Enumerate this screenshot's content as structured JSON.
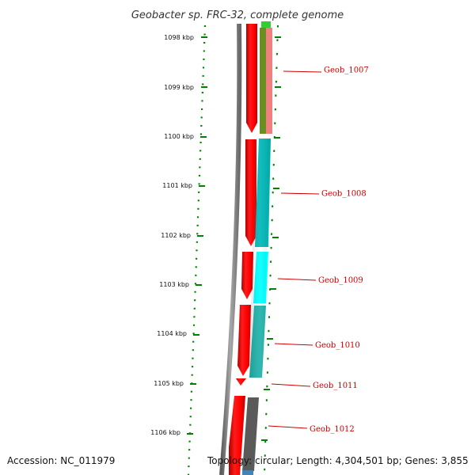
{
  "title": "Geobacter sp. FRC-32, complete genome",
  "footer": {
    "accession": "Accession: NC_011979",
    "summary": "Topology: circular; Length: 4,304,501 bp; Genes: 3,855"
  },
  "ticks": [
    "1098 kbp",
    "1099 kbp",
    "1100 kbp",
    "1101 kbp",
    "1102 kbp",
    "1103 kbp",
    "1104 kbp",
    "1105 kbp",
    "1106 kbp"
  ],
  "genes": [
    {
      "label": "Geob_1007",
      "color": "#f08080"
    },
    {
      "label": "Geob_1008",
      "color": "#00b8b8"
    },
    {
      "label": "Geob_1009",
      "color": "#00ffff"
    },
    {
      "label": "Geob_1010",
      "color": "#20b2aa"
    },
    {
      "label": "Geob_1011",
      "color": "#ffffff"
    },
    {
      "label": "Geob_1012",
      "color": "#5a5a5a"
    }
  ],
  "colors": {
    "forward_strand": "#ff0000",
    "backbone": "#808080",
    "olive_feature": "#6b8e23",
    "green_feature": "#32cd32",
    "blue_feature": "#4682b4",
    "tick": "#008000",
    "label": "#cc0000"
  }
}
